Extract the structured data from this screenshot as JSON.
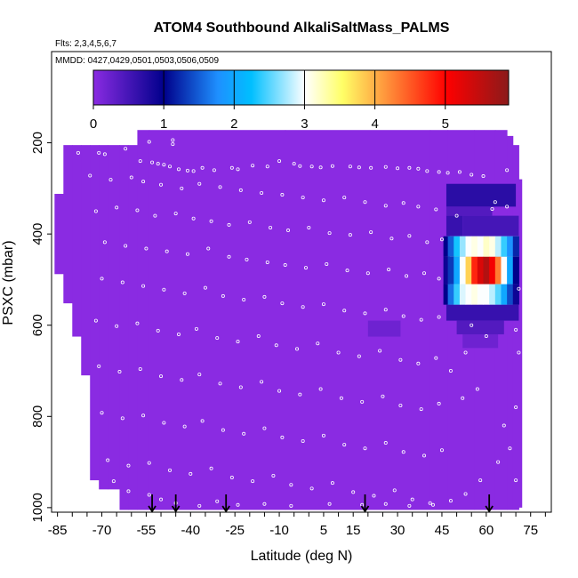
{
  "chart_data": {
    "type": "heatmap",
    "title": "ATOM4 Southbound AlkaliSaltMass_PALMS",
    "subtitle_flights": "Flts: 2,3,4,5,6,7",
    "subtitle_dates": "MMDD: 0427,0429,0501,0503,0506,0509",
    "xlabel": "Latitude (deg N)",
    "ylabel": "PSXC (mbar)",
    "xlim": [
      -87,
      82
    ],
    "ylim": [
      1010,
      0
    ],
    "x_ticks": [
      -85,
      -70,
      -55,
      -40,
      -25,
      -10,
      5,
      15,
      30,
      45,
      60,
      75
    ],
    "x_tick_labels": [
      "-85",
      "-70",
      "-55",
      "-40",
      "-25",
      "-10",
      "5",
      "15",
      "30",
      "45",
      "60",
      "75"
    ],
    "y_ticks": [
      200,
      400,
      600,
      800,
      1000
    ],
    "y_tick_labels": [
      "200",
      "400",
      "600",
      "800",
      "1000"
    ],
    "colorbar": {
      "min": 0,
      "max": 5.9,
      "ticks": [
        0,
        1,
        2,
        3,
        4,
        5
      ],
      "tick_labels": [
        "0",
        "1",
        "2",
        "3",
        "4",
        "5"
      ],
      "colors": [
        "#8a2be2",
        "#00008b",
        "#1e90ff",
        "#00bfff",
        "#ffffff",
        "#ffff66",
        "#ff0000",
        "#8b1a1a"
      ]
    },
    "background_value": 0,
    "grid": false,
    "coverage_columns": [
      [
        -86,
        -83,
        312,
        488
      ],
      [
        -83,
        -80,
        205,
        552
      ],
      [
        -80,
        -77,
        205,
        625
      ],
      [
        -77,
        -74,
        205,
        710
      ],
      [
        -74,
        -71,
        205,
        940
      ],
      [
        -71,
        -68,
        205,
        960
      ],
      [
        -68,
        -64,
        205,
        960
      ],
      [
        -64,
        -61,
        205,
        1005
      ],
      [
        -61,
        -58,
        205,
        1005
      ],
      [
        -58,
        -54,
        172,
        1005
      ],
      [
        -54,
        -8,
        172,
        1005
      ],
      [
        -8,
        41,
        172,
        1005
      ],
      [
        41,
        47,
        172,
        1005
      ],
      [
        47,
        56,
        172,
        1005
      ],
      [
        56,
        63,
        172,
        1005
      ],
      [
        63,
        67,
        172,
        1005
      ],
      [
        67,
        69,
        185,
        1005
      ],
      [
        69,
        71,
        205,
        1005
      ],
      [
        71,
        72,
        280,
        1000
      ]
    ],
    "enhanced_cells": [
      {
        "lat": [
          46.5,
          70
        ],
        "p": [
          290,
          340
        ],
        "value": 0.7
      },
      {
        "lat": [
          46.5,
          62
        ],
        "p": [
          340,
          360
        ],
        "value": 0.4
      },
      {
        "lat": [
          46.5,
          52
        ],
        "p": [
          360,
          405
        ],
        "value": 0.6
      },
      {
        "lat": [
          52,
          71
        ],
        "p": [
          360,
          405
        ],
        "value": 0.5
      },
      {
        "lat": [
          46.5,
          71
        ],
        "p": [
          405,
          450
        ],
        "value": 2.8
      },
      {
        "lat": [
          46.5,
          71
        ],
        "p": [
          450,
          510
        ],
        "value": 4.3
      },
      {
        "lat": [
          46.5,
          71
        ],
        "p": [
          510,
          555
        ],
        "value": 2.9
      },
      {
        "lat": [
          46.5,
          71
        ],
        "p": [
          555,
          590
        ],
        "value": 0.6
      },
      {
        "lat": [
          50,
          66
        ],
        "p": [
          590,
          620
        ],
        "value": 0.4
      },
      {
        "lat": [
          52,
          64
        ],
        "p": [
          620,
          650
        ],
        "value": 0.2
      },
      {
        "lat": [
          20,
          31
        ],
        "p": [
          590,
          625
        ],
        "value": 0.2
      }
    ],
    "plume_profile": [
      {
        "lat": 46.5,
        "p": [
          405,
          450
        ],
        "value": 1.0
      },
      {
        "lat": 48,
        "p": [
          405,
          450
        ],
        "value": 1.5
      },
      {
        "lat": 50,
        "p": [
          405,
          450
        ],
        "value": 2.3
      },
      {
        "lat": 52,
        "p": [
          405,
          450
        ],
        "value": 2.7
      },
      {
        "lat": 54,
        "p": [
          405,
          450
        ],
        "value": 3.0
      },
      {
        "lat": 56,
        "p": [
          405,
          450
        ],
        "value": 3.1
      },
      {
        "lat": 58,
        "p": [
          405,
          450
        ],
        "value": 3.0
      },
      {
        "lat": 60,
        "p": [
          405,
          450
        ],
        "value": 3.2
      },
      {
        "lat": 62,
        "p": [
          405,
          450
        ],
        "value": 3.1
      },
      {
        "lat": 64,
        "p": [
          405,
          450
        ],
        "value": 2.8
      },
      {
        "lat": 66,
        "p": [
          405,
          450
        ],
        "value": 2.4
      },
      {
        "lat": 68,
        "p": [
          405,
          450
        ],
        "value": 1.8
      },
      {
        "lat": 70,
        "p": [
          405,
          450
        ],
        "value": 1.2
      },
      {
        "lat": 46.5,
        "p": [
          450,
          510
        ],
        "value": 0.9
      },
      {
        "lat": 48,
        "p": [
          450,
          510
        ],
        "value": 1.3
      },
      {
        "lat": 50,
        "p": [
          450,
          510
        ],
        "value": 2.0
      },
      {
        "lat": 52,
        "p": [
          450,
          510
        ],
        "value": 3.0
      },
      {
        "lat": 54,
        "p": [
          450,
          510
        ],
        "value": 3.8
      },
      {
        "lat": 56,
        "p": [
          450,
          510
        ],
        "value": 4.8
      },
      {
        "lat": 58,
        "p": [
          450,
          510
        ],
        "value": 5.3
      },
      {
        "lat": 60,
        "p": [
          450,
          510
        ],
        "value": 5.6
      },
      {
        "lat": 62,
        "p": [
          450,
          510
        ],
        "value": 5.1
      },
      {
        "lat": 64,
        "p": [
          450,
          510
        ],
        "value": 4.3
      },
      {
        "lat": 66,
        "p": [
          450,
          510
        ],
        "value": 3.0
      },
      {
        "lat": 68,
        "p": [
          450,
          510
        ],
        "value": 2.0
      },
      {
        "lat": 70,
        "p": [
          450,
          510
        ],
        "value": 1.0
      },
      {
        "lat": 46.5,
        "p": [
          510,
          555
        ],
        "value": 1.0
      },
      {
        "lat": 48,
        "p": [
          510,
          555
        ],
        "value": 1.6
      },
      {
        "lat": 50,
        "p": [
          510,
          555
        ],
        "value": 2.4
      },
      {
        "lat": 52,
        "p": [
          510,
          555
        ],
        "value": 2.9
      },
      {
        "lat": 54,
        "p": [
          510,
          555
        ],
        "value": 3.0
      },
      {
        "lat": 56,
        "p": [
          510,
          555
        ],
        "value": 3.1
      },
      {
        "lat": 58,
        "p": [
          510,
          555
        ],
        "value": 3.0
      },
      {
        "lat": 60,
        "p": [
          510,
          555
        ],
        "value": 3.0
      },
      {
        "lat": 62,
        "p": [
          510,
          555
        ],
        "value": 2.8
      },
      {
        "lat": 64,
        "p": [
          510,
          555
        ],
        "value": 2.5
      },
      {
        "lat": 66,
        "p": [
          510,
          555
        ],
        "value": 2.0
      },
      {
        "lat": 68,
        "p": [
          510,
          555
        ],
        "value": 1.4
      },
      {
        "lat": 70,
        "p": [
          510,
          555
        ],
        "value": 0.9
      }
    ],
    "scatter_points": [
      [
        -78,
        222
      ],
      [
        -71,
        222
      ],
      [
        -69,
        225
      ],
      [
        -62,
        213
      ],
      [
        -54,
        198
      ],
      [
        -46,
        194
      ],
      [
        -46,
        203
      ],
      [
        -57,
        240
      ],
      [
        -53,
        243
      ],
      [
        -51,
        246
      ],
      [
        -49,
        248
      ],
      [
        -47,
        252
      ],
      [
        -44,
        258
      ],
      [
        -41,
        261
      ],
      [
        -39,
        262
      ],
      [
        -36,
        255
      ],
      [
        -32,
        260
      ],
      [
        -26,
        255
      ],
      [
        -24,
        258
      ],
      [
        -19,
        250
      ],
      [
        -14,
        252
      ],
      [
        -10,
        240
      ],
      [
        -5,
        246
      ],
      [
        -3,
        251
      ],
      [
        1,
        252
      ],
      [
        4,
        254
      ],
      [
        8,
        251
      ],
      [
        14,
        252
      ],
      [
        17,
        254
      ],
      [
        21,
        255
      ],
      [
        26,
        253
      ],
      [
        30,
        256
      ],
      [
        34,
        255
      ],
      [
        37,
        257
      ],
      [
        40,
        262
      ],
      [
        44,
        264
      ],
      [
        47,
        266
      ],
      [
        51,
        264
      ],
      [
        55,
        270
      ],
      [
        59,
        273
      ],
      [
        -74,
        272
      ],
      [
        -67,
        281
      ],
      [
        -60,
        276
      ],
      [
        -56,
        285
      ],
      [
        -50,
        292
      ],
      [
        -43,
        300
      ],
      [
        -37,
        290
      ],
      [
        -30,
        297
      ],
      [
        -23,
        304
      ],
      [
        -16,
        310
      ],
      [
        -9,
        314
      ],
      [
        -2,
        320
      ],
      [
        5,
        326
      ],
      [
        12,
        320
      ],
      [
        19,
        330
      ],
      [
        26,
        338
      ],
      [
        32,
        332
      ],
      [
        37,
        340
      ],
      [
        43,
        346
      ],
      [
        -72,
        350
      ],
      [
        -65,
        342
      ],
      [
        -58,
        348
      ],
      [
        -52,
        360
      ],
      [
        -45,
        355
      ],
      [
        -39,
        366
      ],
      [
        -33,
        372
      ],
      [
        -27,
        380
      ],
      [
        -20,
        374
      ],
      [
        -13,
        386
      ],
      [
        -7,
        392
      ],
      [
        0,
        386
      ],
      [
        7,
        398
      ],
      [
        14,
        402
      ],
      [
        21,
        396
      ],
      [
        28,
        410
      ],
      [
        34,
        404
      ],
      [
        40,
        418
      ],
      [
        45,
        412
      ],
      [
        -69,
        418
      ],
      [
        -62,
        426
      ],
      [
        -55,
        432
      ],
      [
        -48,
        438
      ],
      [
        -41,
        444
      ],
      [
        -34,
        432
      ],
      [
        -27,
        450
      ],
      [
        -21,
        456
      ],
      [
        -14,
        462
      ],
      [
        -8,
        468
      ],
      [
        -1,
        474
      ],
      [
        6,
        466
      ],
      [
        13,
        480
      ],
      [
        20,
        486
      ],
      [
        27,
        478
      ],
      [
        33,
        492
      ],
      [
        39,
        486
      ],
      [
        44,
        498
      ],
      [
        -70,
        498
      ],
      [
        -63,
        506
      ],
      [
        -56,
        514
      ],
      [
        -49,
        522
      ],
      [
        -42,
        530
      ],
      [
        -35,
        518
      ],
      [
        -29,
        536
      ],
      [
        -22,
        544
      ],
      [
        -15,
        538
      ],
      [
        -9,
        552
      ],
      [
        -2,
        560
      ],
      [
        5,
        554
      ],
      [
        12,
        568
      ],
      [
        19,
        574
      ],
      [
        26,
        566
      ],
      [
        32,
        580
      ],
      [
        38,
        588
      ],
      [
        44,
        582
      ],
      [
        -72,
        590
      ],
      [
        -65,
        602
      ],
      [
        -58,
        596
      ],
      [
        -51,
        612
      ],
      [
        -44,
        620
      ],
      [
        -38,
        608
      ],
      [
        -31,
        628
      ],
      [
        -24,
        636
      ],
      [
        -17,
        624
      ],
      [
        -11,
        644
      ],
      [
        -4,
        652
      ],
      [
        3,
        640
      ],
      [
        10,
        660
      ],
      [
        17,
        668
      ],
      [
        24,
        656
      ],
      [
        31,
        676
      ],
      [
        37,
        684
      ],
      [
        43,
        672
      ],
      [
        -71,
        690
      ],
      [
        -64,
        702
      ],
      [
        -57,
        696
      ],
      [
        -50,
        712
      ],
      [
        -43,
        720
      ],
      [
        -37,
        708
      ],
      [
        -30,
        728
      ],
      [
        -23,
        736
      ],
      [
        -16,
        724
      ],
      [
        -10,
        744
      ],
      [
        -3,
        752
      ],
      [
        4,
        740
      ],
      [
        11,
        760
      ],
      [
        18,
        768
      ],
      [
        25,
        756
      ],
      [
        31,
        776
      ],
      [
        38,
        784
      ],
      [
        44,
        772
      ],
      [
        -70,
        792
      ],
      [
        -63,
        804
      ],
      [
        -56,
        798
      ],
      [
        -49,
        814
      ],
      [
        -42,
        822
      ],
      [
        -36,
        810
      ],
      [
        -29,
        830
      ],
      [
        -22,
        838
      ],
      [
        -15,
        826
      ],
      [
        -9,
        846
      ],
      [
        -2,
        854
      ],
      [
        5,
        842
      ],
      [
        12,
        862
      ],
      [
        19,
        870
      ],
      [
        26,
        858
      ],
      [
        32,
        878
      ],
      [
        39,
        886
      ],
      [
        45,
        874
      ],
      [
        -68,
        896
      ],
      [
        -61,
        908
      ],
      [
        -54,
        902
      ],
      [
        -47,
        918
      ],
      [
        -40,
        926
      ],
      [
        -33,
        914
      ],
      [
        -26,
        934
      ],
      [
        -19,
        942
      ],
      [
        -12,
        930
      ],
      [
        -6,
        950
      ],
      [
        1,
        958
      ],
      [
        8,
        946
      ],
      [
        15,
        966
      ],
      [
        22,
        974
      ],
      [
        29,
        962
      ],
      [
        35,
        982
      ],
      [
        41,
        990
      ],
      [
        -66,
        942
      ],
      [
        -61,
        964
      ],
      [
        -54,
        972
      ],
      [
        -50,
        982
      ],
      [
        -45,
        990
      ],
      [
        -37,
        996
      ],
      [
        -31,
        986
      ],
      [
        -24,
        994
      ],
      [
        -15,
        992
      ],
      [
        -6,
        996
      ],
      [
        7,
        992
      ],
      [
        18,
        994
      ],
      [
        26,
        992
      ],
      [
        34,
        996
      ],
      [
        42,
        994
      ],
      [
        48,
        985
      ],
      [
        53,
        970
      ],
      [
        58,
        940
      ],
      [
        64,
        900
      ],
      [
        68,
        870
      ],
      [
        70,
        780
      ],
      [
        71,
        660
      ],
      [
        70,
        610
      ],
      [
        67,
        340
      ],
      [
        63,
        330
      ],
      [
        67,
        260
      ],
      [
        62,
        345
      ],
      [
        50,
        360
      ],
      [
        55,
        600
      ],
      [
        60,
        624
      ],
      [
        53,
        660
      ],
      [
        57,
        740
      ],
      [
        52,
        760
      ],
      [
        48,
        700
      ],
      [
        66,
        820
      ],
      [
        70,
        940
      ],
      [
        71,
        520
      ]
    ],
    "arrow_latitudes": [
      -53,
      -45,
      -28,
      19,
      61
    ]
  }
}
